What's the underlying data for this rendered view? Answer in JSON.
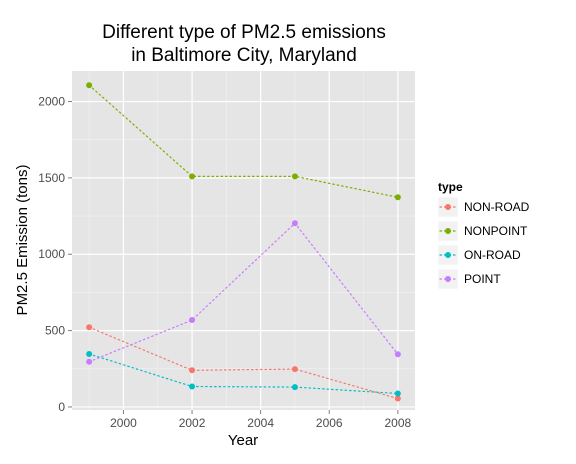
{
  "chart_data": {
    "type": "line",
    "title_lines": [
      "Different type of PM2.5 emissions",
      "in Baltimore City, Maryland"
    ],
    "xlabel": "Year",
    "ylabel": "PM2.5 Emission (tons)",
    "xlim": [
      1998.5,
      2008.5
    ],
    "ylim": [
      -20,
      2200
    ],
    "xticks": [
      2000,
      2002,
      2004,
      2006,
      2008
    ],
    "xtick_labels": [
      "2000",
      "2002",
      "2004",
      "2006",
      "2008"
    ],
    "yticks": [
      0,
      500,
      1000,
      1500,
      2000
    ],
    "ytick_labels": [
      "0",
      "500",
      "1000",
      "1500",
      "2000"
    ],
    "x": [
      1999,
      2002,
      2005,
      2008
    ],
    "grid": true,
    "legend": {
      "title": "type",
      "position": "right"
    },
    "series": [
      {
        "name": "NON-ROAD",
        "color": "#F8766D",
        "values": [
          522,
          240,
          248,
          55
        ]
      },
      {
        "name": "NONPOINT",
        "color": "#7CAE00",
        "values": [
          2107,
          1510,
          1510,
          1373
        ]
      },
      {
        "name": "ON-ROAD",
        "color": "#00BFC4",
        "values": [
          347,
          134,
          130,
          88
        ]
      },
      {
        "name": "POINT",
        "color": "#C77CFF",
        "values": [
          296,
          569,
          1203,
          345
        ]
      }
    ]
  }
}
